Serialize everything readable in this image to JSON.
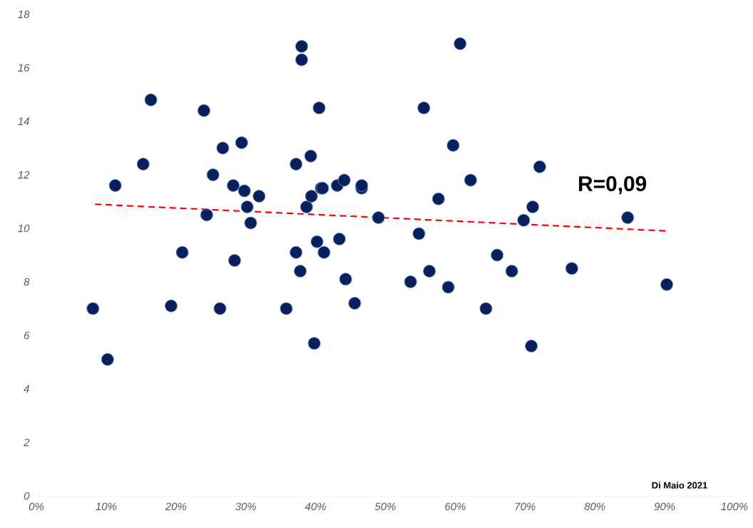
{
  "chart_data": {
    "type": "scatter",
    "xlim": [
      0,
      100
    ],
    "ylim": [
      0,
      18
    ],
    "xticks": [
      {
        "value": 0,
        "label": "0%"
      },
      {
        "value": 10,
        "label": "10%"
      },
      {
        "value": 20,
        "label": "20%"
      },
      {
        "value": 30,
        "label": "30%"
      },
      {
        "value": 40,
        "label": "40%"
      },
      {
        "value": 50,
        "label": "50%"
      },
      {
        "value": 60,
        "label": "60%"
      },
      {
        "value": 70,
        "label": "70%"
      },
      {
        "value": 80,
        "label": "80%"
      },
      {
        "value": 90,
        "label": "90%"
      },
      {
        "value": 100,
        "label": "100%"
      }
    ],
    "yticks": [
      0,
      2,
      4,
      6,
      8,
      10,
      12,
      14,
      16,
      18
    ],
    "series": [
      {
        "type": "scatter",
        "marker": "circle",
        "color": "#0a1f5c",
        "x": [
          8.1,
          10.2,
          11.3,
          15.3,
          16.4,
          19.3,
          20.9,
          24.0,
          24.4,
          25.3,
          26.3,
          26.7,
          28.2,
          28.4,
          29.4,
          29.8,
          30.2,
          30.7,
          31.9,
          35.8,
          37.2,
          37.2,
          37.8,
          38.0,
          38.0,
          38.7,
          39.3,
          39.4,
          39.8,
          40.2,
          40.5,
          40.8,
          41.0,
          41.2,
          43.1,
          43.4,
          44.1,
          44.3,
          45.6,
          46.6,
          46.6,
          49.0,
          53.6,
          54.8,
          55.5,
          56.3,
          57.6,
          59.0,
          59.7,
          60.7,
          62.2,
          64.4,
          66.0,
          68.1,
          69.8,
          70.9,
          71.1,
          72.1,
          76.7,
          84.7,
          90.3
        ],
        "values": [
          7.0,
          5.1,
          11.6,
          12.4,
          14.8,
          7.1,
          9.1,
          14.4,
          10.5,
          12.0,
          7.0,
          13.0,
          11.6,
          8.8,
          13.2,
          11.4,
          10.8,
          10.2,
          11.2,
          7.0,
          9.1,
          12.4,
          8.4,
          16.8,
          16.3,
          10.8,
          12.7,
          11.2,
          5.7,
          9.5,
          14.5,
          11.5,
          11.5,
          9.1,
          11.6,
          9.6,
          11.8,
          8.1,
          7.2,
          11.5,
          11.6,
          10.4,
          8.0,
          9.8,
          14.5,
          8.4,
          11.1,
          7.8,
          13.1,
          16.9,
          11.8,
          7.0,
          9.0,
          8.4,
          10.3,
          5.6,
          10.8,
          12.3,
          8.5,
          10.4,
          7.9
        ]
      },
      {
        "type": "line",
        "marker": "none",
        "color": "#ff0000",
        "line_style": "dashed",
        "x": [
          8.4,
          90.4
        ],
        "values": [
          10.9,
          9.9
        ]
      }
    ],
    "annotations": [
      "R=0,09",
      "Di Maio 2021"
    ]
  }
}
